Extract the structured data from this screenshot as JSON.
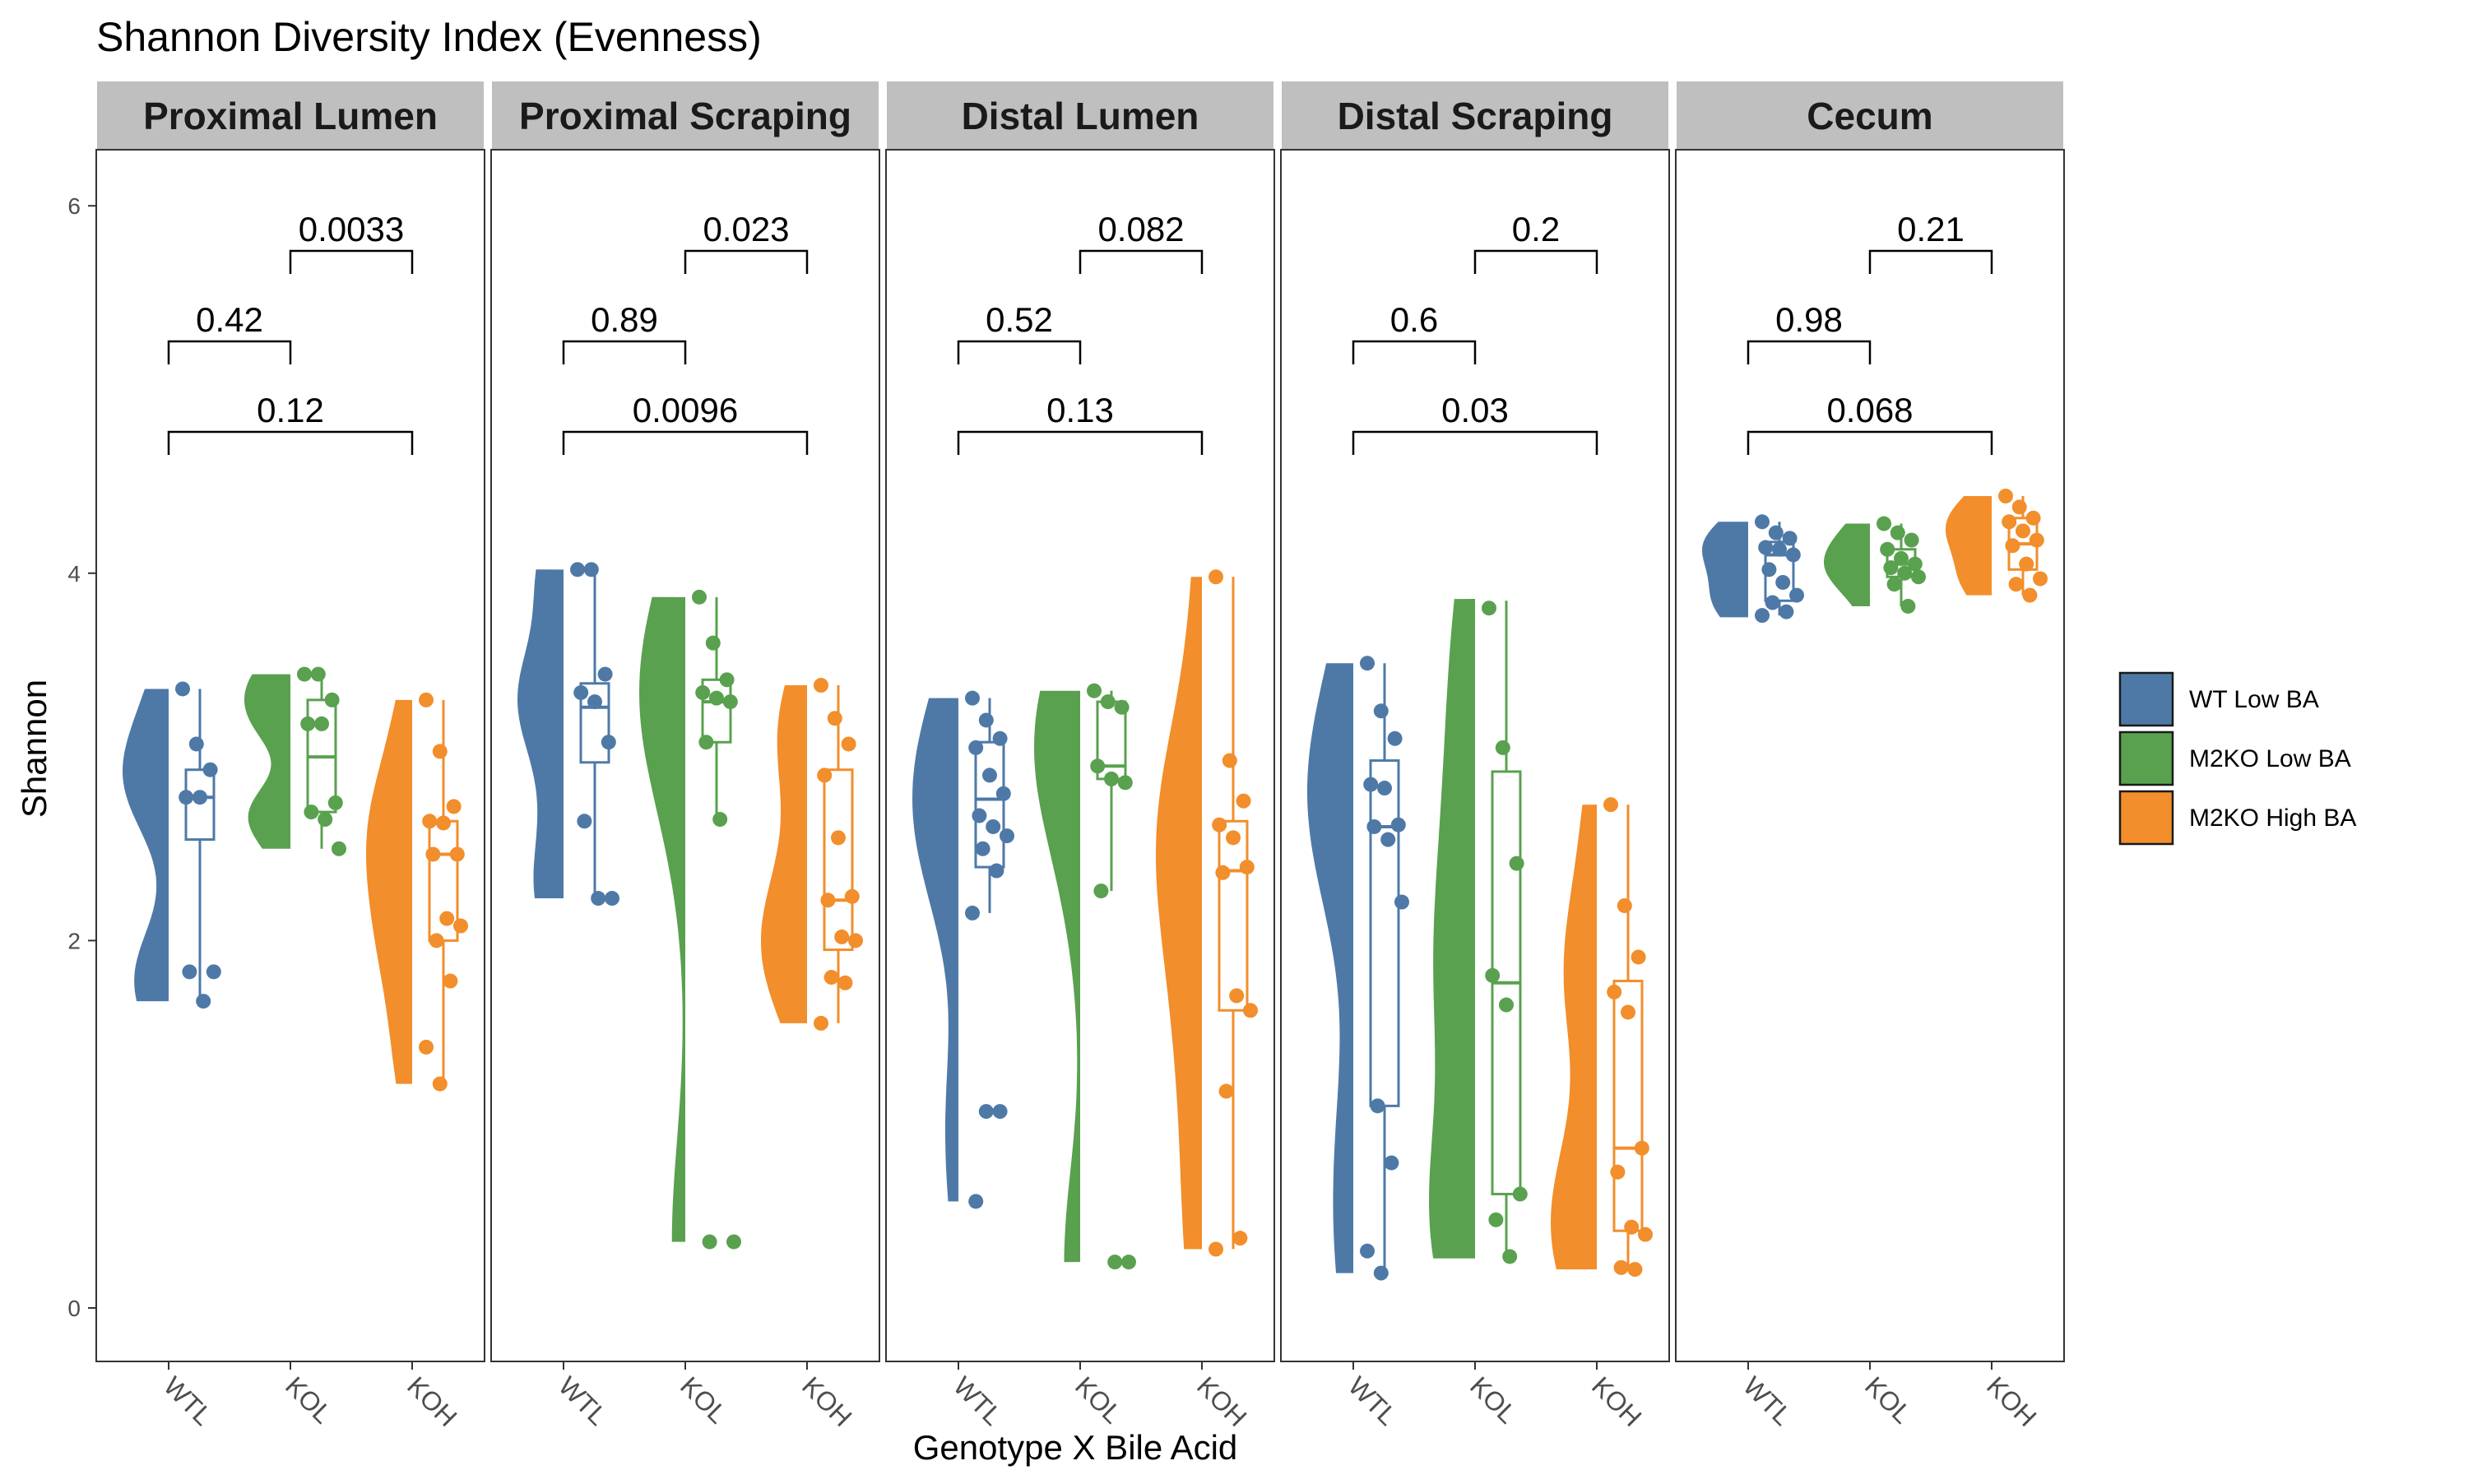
{
  "chart_data": {
    "type": "raincloud",
    "title": "Shannon Diversity Index (Evenness)",
    "xlabel": "Genotype X Bile Acid",
    "ylabel": "Shannon",
    "ylim": [
      -0.3,
      6.3
    ],
    "yticks": [
      0,
      2,
      4,
      6
    ],
    "categories": [
      "WTL",
      "KOL",
      "KOH"
    ],
    "legend": {
      "position": "right",
      "entries": [
        {
          "label": "WT Low BA",
          "color": "#4E79A7"
        },
        {
          "label": "M2KO Low BA",
          "color": "#59A14F"
        },
        {
          "label": "M2KO High BA",
          "color": "#F28E2B"
        }
      ]
    },
    "facets": [
      {
        "label": "Proximal Lumen",
        "groups": [
          {
            "points": [
              3.37,
              3.07,
              2.93,
              2.78,
              2.78,
              1.83,
              1.83,
              1.67
            ],
            "box": [
              1.67,
              2.55,
              2.78,
              2.93,
              3.37
            ],
            "violin": [
              1.67,
              3.37
            ]
          },
          {
            "points": [
              3.45,
              3.45,
              3.31,
              3.18,
              3.18,
              2.75,
              2.7,
              2.66,
              2.5
            ],
            "box": [
              2.5,
              2.7,
              3.0,
              3.31,
              3.45
            ],
            "violin": [
              2.5,
              3.45
            ]
          },
          {
            "points": [
              3.31,
              3.03,
              2.73,
              2.65,
              2.64,
              2.47,
              2.47,
              2.12,
              2.08,
              2.0,
              1.78,
              1.42,
              1.22
            ],
            "box": [
              1.22,
              2.0,
              2.47,
              2.65,
              3.31
            ],
            "violin": [
              1.22,
              3.31
            ]
          }
        ],
        "comparisons": [
          {
            "pair": [
              "KOL",
              "KOH"
            ],
            "p": "0.0033"
          },
          {
            "pair": [
              "WTL",
              "KOL"
            ],
            "p": "0.42"
          },
          {
            "pair": [
              "WTL",
              "KOH"
            ],
            "p": "0.12"
          }
        ]
      },
      {
        "label": "Proximal Scraping",
        "groups": [
          {
            "points": [
              4.02,
              4.02,
              3.45,
              3.35,
              3.3,
              3.08,
              2.65,
              2.23,
              2.23
            ],
            "box": [
              2.23,
              2.97,
              3.27,
              3.4,
              4.02
            ],
            "violin": [
              2.23,
              4.02
            ]
          },
          {
            "points": [
              3.87,
              3.62,
              3.42,
              3.35,
              3.32,
              3.3,
              3.08,
              2.66,
              0.36,
              0.36
            ],
            "box": [
              2.66,
              3.08,
              3.3,
              3.42,
              3.87
            ],
            "violin": [
              0.36,
              3.87
            ]
          },
          {
            "points": [
              3.39,
              3.21,
              3.07,
              2.9,
              2.56,
              2.24,
              2.22,
              2.02,
              2.0,
              1.8,
              1.77,
              1.55
            ],
            "box": [
              1.55,
              1.95,
              2.22,
              2.93,
              3.39
            ],
            "violin": [
              1.55,
              3.39
            ]
          }
        ],
        "comparisons": [
          {
            "pair": [
              "KOL",
              "KOH"
            ],
            "p": "0.023"
          },
          {
            "pair": [
              "WTL",
              "KOL"
            ],
            "p": "0.89"
          },
          {
            "pair": [
              "WTL",
              "KOH"
            ],
            "p": "0.0096"
          }
        ]
      },
      {
        "label": "Distal Lumen",
        "groups": [
          {
            "points": [
              3.32,
              3.2,
              3.1,
              3.05,
              2.9,
              2.8,
              2.68,
              2.62,
              2.57,
              2.5,
              2.38,
              2.15,
              1.07,
              1.07,
              0.58
            ],
            "box": [
              2.15,
              2.4,
              2.77,
              3.08,
              3.32
            ],
            "violin": [
              0.58,
              3.32
            ]
          },
          {
            "points": [
              3.36,
              3.3,
              3.27,
              2.95,
              2.88,
              2.86,
              2.27,
              0.25,
              0.25
            ],
            "box": [
              2.27,
              2.88,
              2.95,
              3.3,
              3.36
            ],
            "violin": [
              0.25,
              3.36
            ]
          },
          {
            "points": [
              3.98,
              2.98,
              2.76,
              2.63,
              2.56,
              2.4,
              2.37,
              1.7,
              1.62,
              1.18,
              0.38,
              0.32
            ],
            "box": [
              0.32,
              1.62,
              2.38,
              2.65,
              3.98
            ],
            "violin": [
              0.32,
              3.98
            ]
          }
        ],
        "comparisons": [
          {
            "pair": [
              "KOL",
              "KOH"
            ],
            "p": "0.082"
          },
          {
            "pair": [
              "WTL",
              "KOL"
            ],
            "p": "0.52"
          },
          {
            "pair": [
              "WTL",
              "KOH"
            ],
            "p": "0.13"
          }
        ]
      },
      {
        "label": "Distal Scraping",
        "groups": [
          {
            "points": [
              3.51,
              3.25,
              3.1,
              2.85,
              2.83,
              2.63,
              2.62,
              2.55,
              2.21,
              1.1,
              0.79,
              0.31,
              0.19
            ],
            "box": [
              0.19,
              1.1,
              2.62,
              2.98,
              3.51
            ],
            "violin": [
              0.19,
              3.51
            ]
          },
          {
            "points": [
              3.81,
              3.05,
              2.42,
              1.81,
              1.65,
              0.62,
              0.48,
              0.28
            ],
            "box": [
              0.28,
              0.62,
              1.77,
              2.92,
              3.85
            ],
            "violin": [
              0.27,
              3.86
            ]
          },
          {
            "points": [
              2.74,
              2.19,
              1.91,
              1.72,
              1.61,
              0.87,
              0.74,
              0.44,
              0.4,
              0.22,
              0.21
            ],
            "box": [
              0.21,
              0.42,
              0.87,
              1.78,
              2.74
            ],
            "violin": [
              0.21,
              2.74
            ]
          }
        ],
        "comparisons": [
          {
            "pair": [
              "KOL",
              "KOH"
            ],
            "p": "0.2"
          },
          {
            "pair": [
              "WTL",
              "KOL"
            ],
            "p": "0.6"
          },
          {
            "pair": [
              "WTL",
              "KOH"
            ],
            "p": "0.03"
          }
        ]
      },
      {
        "label": "Cecum",
        "groups": [
          {
            "points": [
              4.28,
              4.22,
              4.19,
              4.14,
              4.13,
              4.1,
              4.02,
              3.95,
              3.88,
              3.84,
              3.79,
              3.77
            ],
            "box": [
              3.77,
              3.85,
              4.1,
              4.17,
              4.28
            ],
            "violin": [
              3.76,
              4.28
            ]
          },
          {
            "points": [
              4.27,
              4.22,
              4.18,
              4.13,
              4.08,
              4.05,
              4.03,
              4.0,
              3.98,
              3.94,
              3.82
            ],
            "box": [
              3.82,
              3.98,
              4.05,
              4.13,
              4.27
            ],
            "violin": [
              3.82,
              4.27
            ]
          },
          {
            "points": [
              4.42,
              4.36,
              4.3,
              4.28,
              4.23,
              4.18,
              4.15,
              4.05,
              3.97,
              3.94,
              3.88
            ],
            "box": [
              3.88,
              4.02,
              4.16,
              4.3,
              4.42
            ],
            "violin": [
              3.88,
              4.42
            ]
          }
        ],
        "comparisons": [
          {
            "pair": [
              "KOL",
              "KOH"
            ],
            "p": "0.21"
          },
          {
            "pair": [
              "WTL",
              "KOL"
            ],
            "p": "0.98"
          },
          {
            "pair": [
              "WTL",
              "KOH"
            ],
            "p": "0.068"
          }
        ]
      }
    ]
  }
}
